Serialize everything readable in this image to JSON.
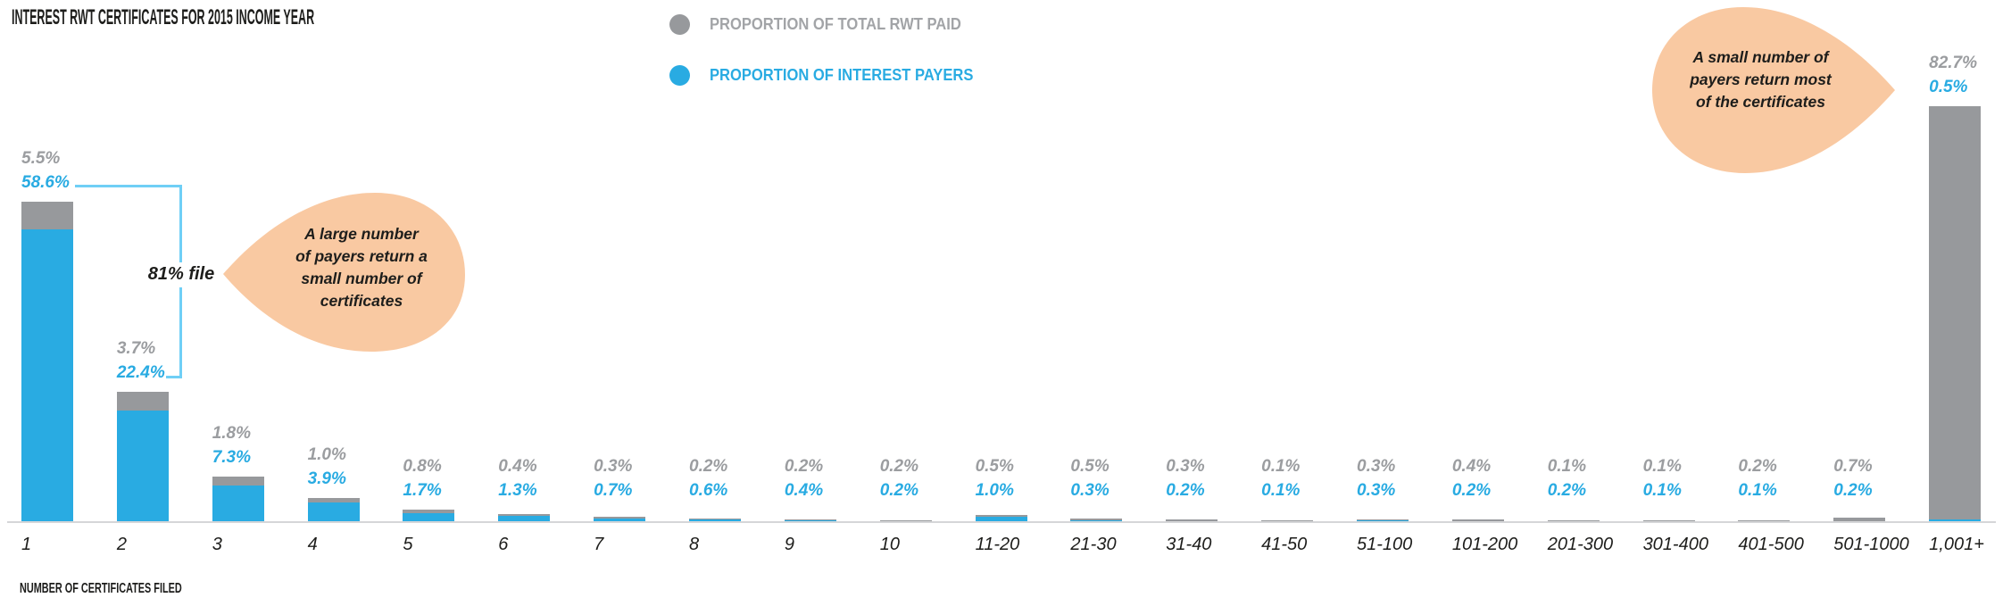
{
  "header": {
    "title": "INTEREST RWT CERTIFICATES FOR 2015 INCOME YEAR"
  },
  "legend": [
    {
      "label": "PROPORTION OF TOTAL RWT PAID",
      "color": "#97999C",
      "text_color": "#A2A4A7"
    },
    {
      "label": "PROPORTION OF INTEREST PAYERS",
      "color": "#29ABE2",
      "text_color": "#29ABE2"
    }
  ],
  "annotations": {
    "bracket_label": "81% file",
    "left_callout": "A large number\nof payers return a\nsmall number of\ncertificates",
    "right_callout": "A small number of\npayers return most\nof the certificates"
  },
  "x_axis_title": "NUMBER OF CERTIFICATES FILED",
  "colors": {
    "blue": "#29ABE2",
    "gray": "#97999C",
    "label_gray": "#9B9DA0",
    "bracket_blue": "#6FCFF6",
    "callout_peach": "#F9C9A2",
    "axis_line": "#D5D6D8"
  },
  "chart_data": {
    "type": "bar",
    "stacked": true,
    "title": "INTEREST RWT CERTIFICATES FOR 2015 INCOME YEAR",
    "xlabel": "NUMBER OF CERTIFICATES FILED",
    "ylabel": "",
    "ylim": [
      0,
      85
    ],
    "grid": false,
    "y_axis_visible": false,
    "value_labels_shown": true,
    "legend_position": "top-center",
    "categories": [
      "1",
      "2",
      "3",
      "4",
      "5",
      "6",
      "7",
      "8",
      "9",
      "10",
      "11-20",
      "21-30",
      "31-40",
      "41-50",
      "51-100",
      "101-200",
      "201-300",
      "301-400",
      "401-500",
      "501-1000",
      "1,001+"
    ],
    "series": [
      {
        "name": "PROPORTION OF TOTAL RWT PAID",
        "color": "#97999C",
        "values": [
          5.5,
          3.7,
          1.8,
          1.0,
          0.8,
          0.4,
          0.3,
          0.2,
          0.2,
          0.2,
          0.5,
          0.5,
          0.3,
          0.1,
          0.3,
          0.4,
          0.1,
          0.1,
          0.2,
          0.7,
          82.7
        ]
      },
      {
        "name": "PROPORTION OF INTEREST PAYERS",
        "color": "#29ABE2",
        "values": [
          58.6,
          22.4,
          7.3,
          3.9,
          1.7,
          1.3,
          0.7,
          0.6,
          0.4,
          0.2,
          1.0,
          0.3,
          0.2,
          0.1,
          0.3,
          0.2,
          0.2,
          0.1,
          0.1,
          0.2,
          0.5
        ]
      }
    ]
  }
}
